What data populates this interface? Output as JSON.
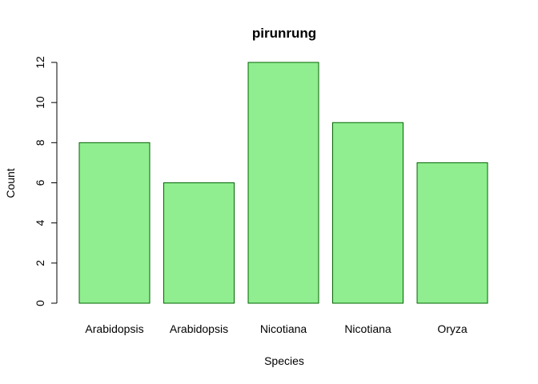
{
  "chart_data": {
    "type": "bar",
    "title": "pirunrung",
    "xlabel": "Species",
    "ylabel": "Count",
    "categories": [
      "Arabidopsis",
      "Arabidopsis",
      "Nicotiana",
      "Nicotiana",
      "Oryza"
    ],
    "values": [
      8,
      6,
      12,
      9,
      7
    ],
    "ylim": [
      0,
      12
    ],
    "yticks": [
      0,
      2,
      4,
      6,
      8,
      10,
      12
    ],
    "bar_color": "#90ee90",
    "bar_border_color": "#006400",
    "grid": false
  }
}
